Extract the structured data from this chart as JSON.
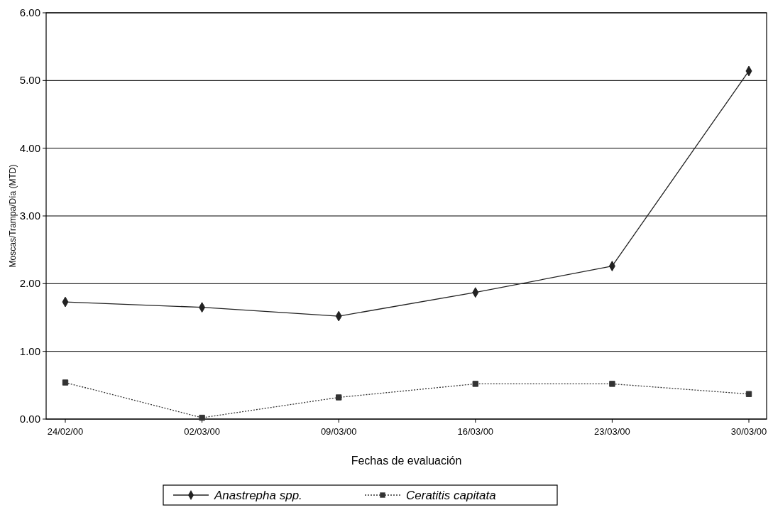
{
  "chart_data": {
    "type": "line",
    "xlabel": "Fechas de evaluación",
    "ylabel": "Moscas/Trampa/Día (MTD)",
    "categories": [
      "24/02/00",
      "02/03/00",
      "09/03/00",
      "16/03/00",
      "23/03/00",
      "30/03/00"
    ],
    "ylim": [
      0,
      6
    ],
    "yticks": [
      {
        "value": 0,
        "label": "0.00"
      },
      {
        "value": 1,
        "label": "1.00"
      },
      {
        "value": 2,
        "label": "2.00"
      },
      {
        "value": 3,
        "label": "3.00"
      },
      {
        "value": 4,
        "label": "4.00"
      },
      {
        "value": 5,
        "label": "5.00"
      },
      {
        "value": 6,
        "label": "6.00"
      }
    ],
    "grid": "y",
    "legend": "bottom",
    "series": [
      {
        "name": "Anastrepha spp.",
        "color": "#222222",
        "marker": "diamond",
        "line_style": "solid",
        "values": [
          1.73,
          1.65,
          1.52,
          1.87,
          2.26,
          5.14
        ]
      },
      {
        "name": "Ceratitis capitata",
        "color": "#333333",
        "marker": "square",
        "line_style": "dotted",
        "values": [
          0.54,
          0.02,
          0.32,
          0.52,
          0.52,
          0.37
        ]
      }
    ]
  }
}
